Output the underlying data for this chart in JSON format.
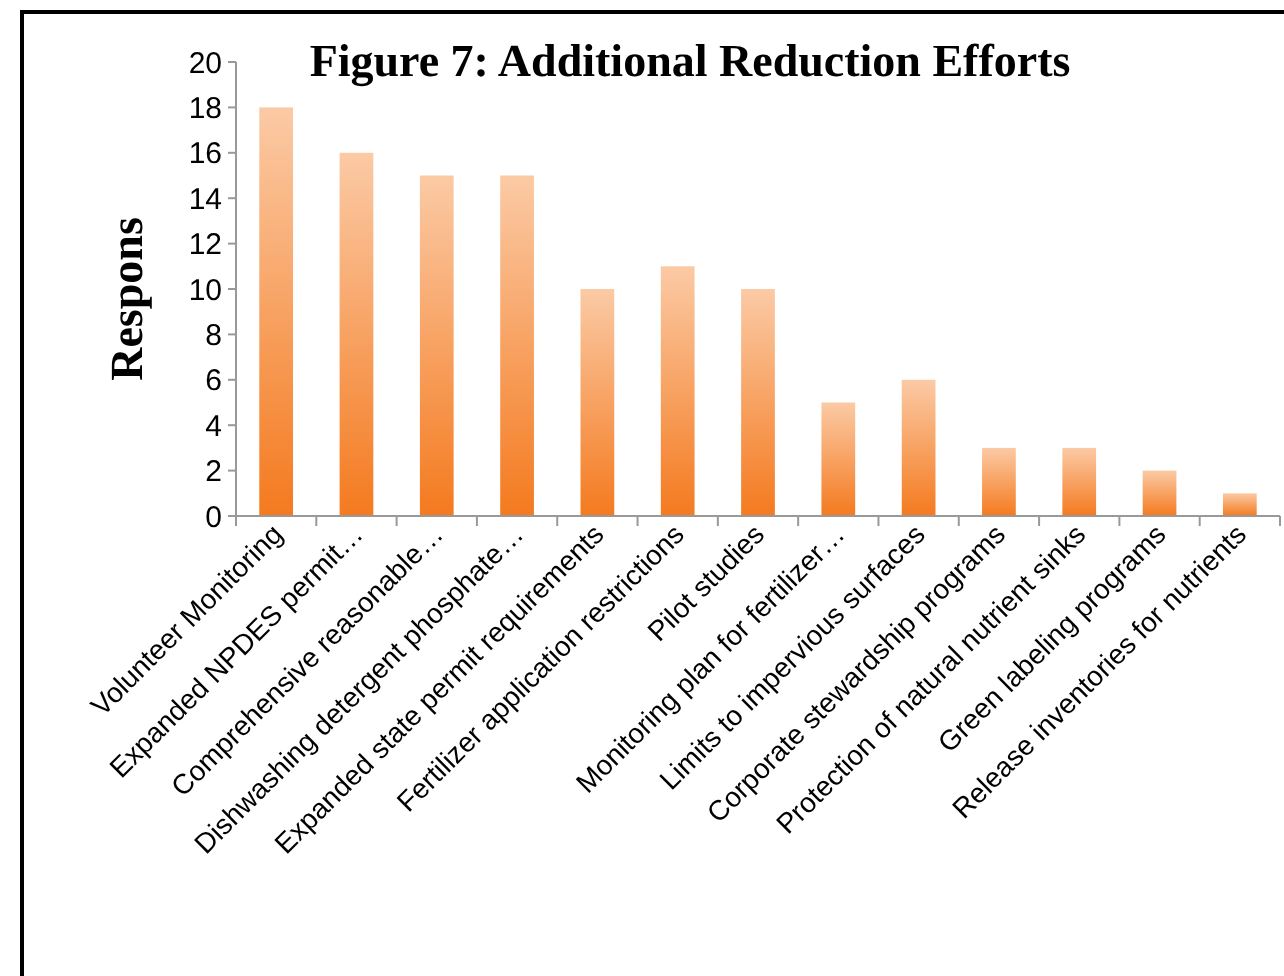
{
  "chart_data": {
    "type": "bar",
    "title": "Figure 7: Additional Reduction Efforts",
    "ylabel": "Respons",
    "categories": [
      "Volunteer Monitoring",
      "Expanded NPDES permit…",
      "Comprehensive reasonable…",
      "Dishwashing detergent phosphate…",
      "Expanded state permit requirements",
      "Fertilizer application restrictions",
      "Pilot studies",
      "Monitoring plan for fertilizer…",
      "Limits to impervious surfaces",
      "Corporate stewardship programs",
      "Protection of natural nutrient sinks",
      "Green labeling programs",
      "Release inventories for nutrients"
    ],
    "values": [
      18,
      16,
      15,
      15,
      10,
      11,
      10,
      5,
      6,
      3,
      3,
      2,
      1
    ],
    "color": "#f47a1f",
    "ylim": [
      0,
      20
    ],
    "yticks": [
      0,
      2,
      4,
      6,
      8,
      10,
      12,
      14,
      16,
      18,
      20
    ],
    "grid": false
  }
}
